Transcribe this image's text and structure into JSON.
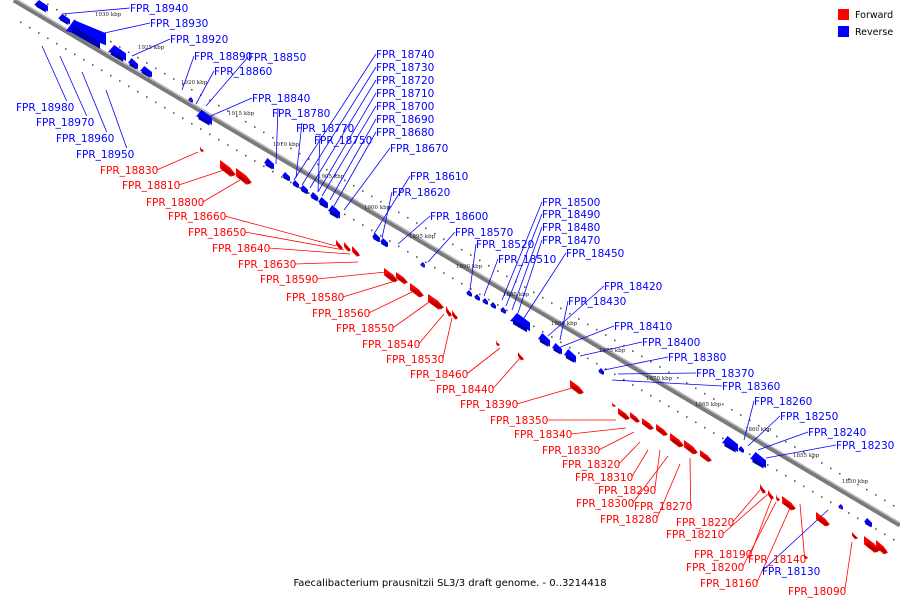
{
  "caption": "Faecalibacterium prausnitzii SL3/3 draft genome. - 0..3214418",
  "legend": {
    "forward_label": "Forward",
    "reverse_label": "Reverse",
    "forward_color": "#ff0000",
    "reverse_color": "#0000ff"
  },
  "ticks": [
    {
      "label": "1930 kbp",
      "pos": 1930
    },
    {
      "label": "1925 kbp",
      "pos": 1925
    },
    {
      "label": "1920 kbp",
      "pos": 1920
    },
    {
      "label": "1915 kbp",
      "pos": 1915
    },
    {
      "label": "1910 kbp",
      "pos": 1910
    },
    {
      "label": "1905 kbp",
      "pos": 1905
    },
    {
      "label": "1900 kbp",
      "pos": 1900
    },
    {
      "label": "1895 kbp",
      "pos": 1895
    },
    {
      "label": "1890 kbp",
      "pos": 1890
    },
    {
      "label": "1885 kbp",
      "pos": 1885
    },
    {
      "label": "1880 kbp",
      "pos": 1880
    },
    {
      "label": "1875 kbp",
      "pos": 1875
    },
    {
      "label": "1870 kbp",
      "pos": 1870
    },
    {
      "label": "1865 kbp",
      "pos": 1865
    },
    {
      "label": "1860 kbp",
      "pos": 1860
    },
    {
      "label": "1855 kbp",
      "pos": 1855
    },
    {
      "label": "1850 kbp",
      "pos": 1850
    }
  ],
  "reverse_genes": [
    {
      "label": "FPR_18940"
    },
    {
      "label": "FPR_18930"
    },
    {
      "label": "FPR_18920"
    },
    {
      "label": "FPR_18890"
    },
    {
      "label": "FPR_18850"
    },
    {
      "label": "FPR_18860"
    },
    {
      "label": "FPR_18840"
    },
    {
      "label": "FPR_18980"
    },
    {
      "label": "FPR_18970"
    },
    {
      "label": "FPR_18960"
    },
    {
      "label": "FPR_18950"
    },
    {
      "label": "FPR_18780"
    },
    {
      "label": "FPR_18770"
    },
    {
      "label": "FPR_18750"
    },
    {
      "label": "FPR_18740"
    },
    {
      "label": "FPR_18730"
    },
    {
      "label": "FPR_18720"
    },
    {
      "label": "FPR_18710"
    },
    {
      "label": "FPR_18700"
    },
    {
      "label": "FPR_18690"
    },
    {
      "label": "FPR_18680"
    },
    {
      "label": "FPR_18670"
    },
    {
      "label": "FPR_18610"
    },
    {
      "label": "FPR_18620"
    },
    {
      "label": "FPR_18600"
    },
    {
      "label": "FPR_18570"
    },
    {
      "label": "FPR_18520"
    },
    {
      "label": "FPR_18510"
    },
    {
      "label": "FPR_18500"
    },
    {
      "label": "FPR_18490"
    },
    {
      "label": "FPR_18480"
    },
    {
      "label": "FPR_18470"
    },
    {
      "label": "FPR_18450"
    },
    {
      "label": "FPR_18420"
    },
    {
      "label": "FPR_18430"
    },
    {
      "label": "FPR_18410"
    },
    {
      "label": "FPR_18400"
    },
    {
      "label": "FPR_18380"
    },
    {
      "label": "FPR_18370"
    },
    {
      "label": "FPR_18360"
    },
    {
      "label": "FPR_18260"
    },
    {
      "label": "FPR_18250"
    },
    {
      "label": "FPR_18240"
    },
    {
      "label": "FPR_18230"
    },
    {
      "label": "FPR_18130"
    }
  ],
  "forward_genes": [
    {
      "label": "FPR_18830"
    },
    {
      "label": "FPR_18810"
    },
    {
      "label": "FPR_18800"
    },
    {
      "label": "FPR_18660"
    },
    {
      "label": "FPR_18650"
    },
    {
      "label": "FPR_18640"
    },
    {
      "label": "FPR_18630"
    },
    {
      "label": "FPR_18590"
    },
    {
      "label": "FPR_18580"
    },
    {
      "label": "FPR_18560"
    },
    {
      "label": "FPR_18550"
    },
    {
      "label": "FPR_18540"
    },
    {
      "label": "FPR_18530"
    },
    {
      "label": "FPR_18460"
    },
    {
      "label": "FPR_18440"
    },
    {
      "label": "FPR_18390"
    },
    {
      "label": "FPR_18350"
    },
    {
      "label": "FPR_18340"
    },
    {
      "label": "FPR_18330"
    },
    {
      "label": "FPR_18320"
    },
    {
      "label": "FPR_18310"
    },
    {
      "label": "FPR_18290"
    },
    {
      "label": "FPR_18300"
    },
    {
      "label": "FPR_18270"
    },
    {
      "label": "FPR_18280"
    },
    {
      "label": "FPR_18220"
    },
    {
      "label": "FPR_18210"
    },
    {
      "label": "FPR_18190"
    },
    {
      "label": "FPR_18200"
    },
    {
      "label": "FPR_18140"
    },
    {
      "label": "FPR_18160"
    },
    {
      "label": "FPR_18090"
    }
  ]
}
